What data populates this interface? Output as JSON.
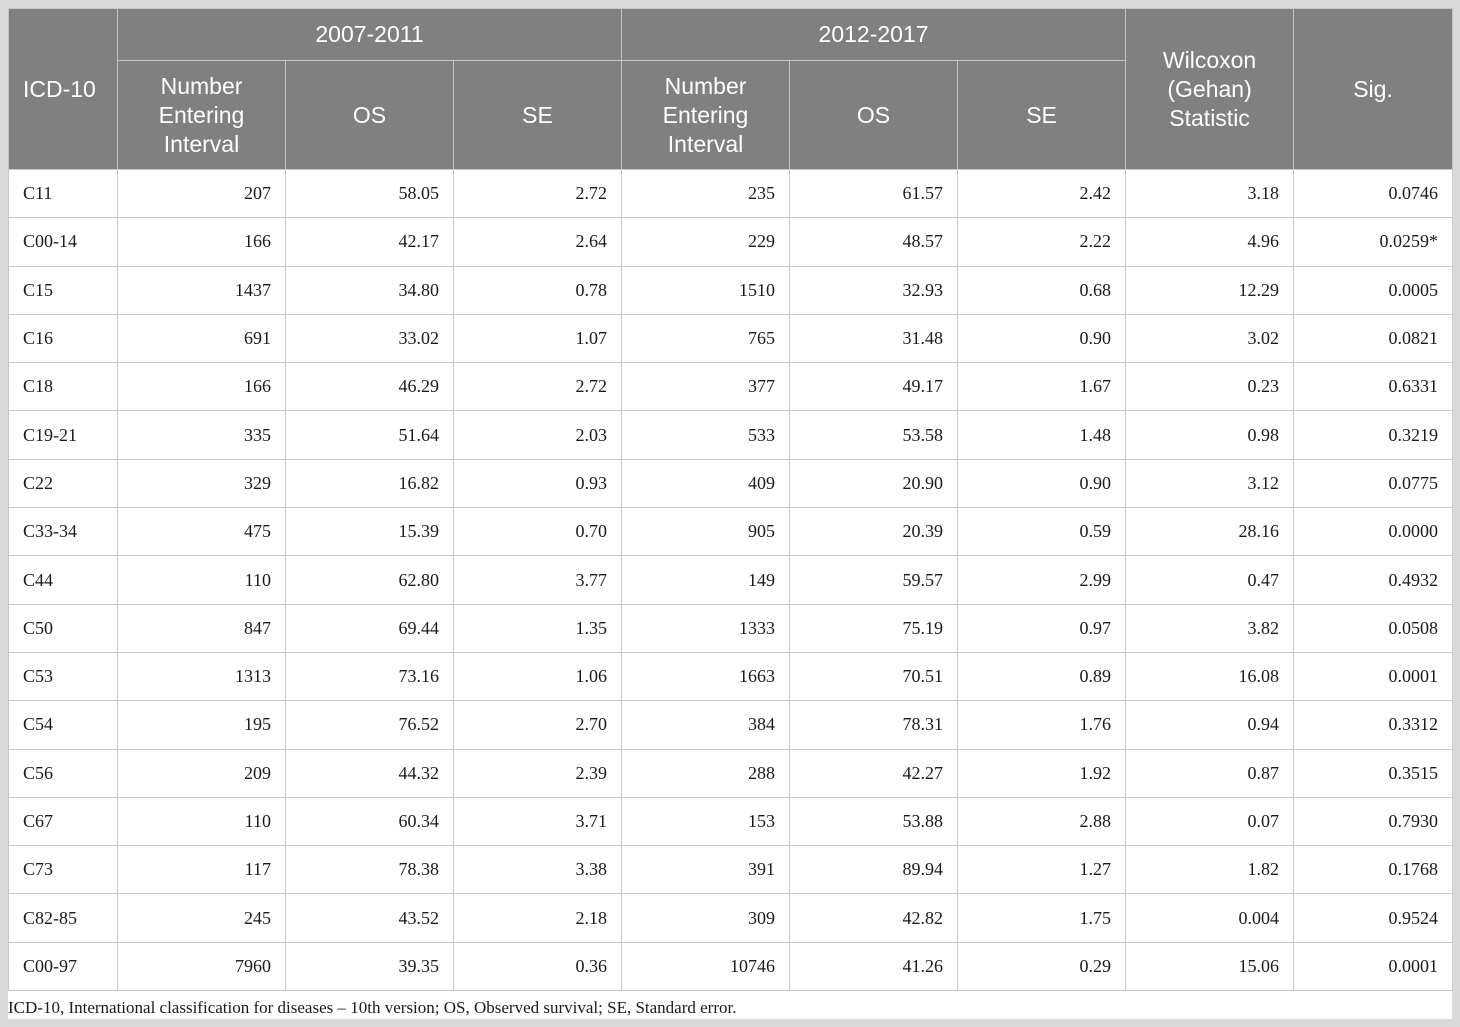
{
  "headers": {
    "icd": "ICD-10",
    "period1": "2007-2011",
    "period2": "2012-2017",
    "wilcoxon": "Wilcoxon (Gehan) Statistic",
    "sig": "Sig.",
    "number": "Number Entering Interval",
    "os": "OS",
    "se": "SE"
  },
  "rows": [
    [
      "C11",
      "207",
      "58.05",
      "2.72",
      "235",
      "61.57",
      "2.42",
      "3.18",
      "0.0746"
    ],
    [
      "C00-14",
      "166",
      "42.17",
      "2.64",
      "229",
      "48.57",
      "2.22",
      "4.96",
      "0.0259*"
    ],
    [
      "C15",
      "1437",
      "34.80",
      "0.78",
      "1510",
      "32.93",
      "0.68",
      "12.29",
      "0.0005"
    ],
    [
      "C16",
      "691",
      "33.02",
      "1.07",
      "765",
      "31.48",
      "0.90",
      "3.02",
      "0.0821"
    ],
    [
      "C18",
      "166",
      "46.29",
      "2.72",
      "377",
      "49.17",
      "1.67",
      "0.23",
      "0.6331"
    ],
    [
      "C19-21",
      "335",
      "51.64",
      "2.03",
      "533",
      "53.58",
      "1.48",
      "0.98",
      "0.3219"
    ],
    [
      "C22",
      "329",
      "16.82",
      "0.93",
      "409",
      "20.90",
      "0.90",
      "3.12",
      "0.0775"
    ],
    [
      "C33-34",
      "475",
      "15.39",
      "0.70",
      "905",
      "20.39",
      "0.59",
      "28.16",
      "0.0000"
    ],
    [
      "C44",
      "110",
      "62.80",
      "3.77",
      "149",
      "59.57",
      "2.99",
      "0.47",
      "0.4932"
    ],
    [
      "C50",
      "847",
      "69.44",
      "1.35",
      "1333",
      "75.19",
      "0.97",
      "3.82",
      "0.0508"
    ],
    [
      "C53",
      "1313",
      "73.16",
      "1.06",
      "1663",
      "70.51",
      "0.89",
      "16.08",
      "0.0001"
    ],
    [
      "C54",
      "195",
      "76.52",
      "2.70",
      "384",
      "78.31",
      "1.76",
      "0.94",
      "0.3312"
    ],
    [
      "C56",
      "209",
      "44.32",
      "2.39",
      "288",
      "42.27",
      "1.92",
      "0.87",
      "0.3515"
    ],
    [
      "C67",
      "110",
      "60.34",
      "3.71",
      "153",
      "53.88",
      "2.88",
      "0.07",
      "0.7930"
    ],
    [
      "C73",
      "117",
      "78.38",
      "3.38",
      "391",
      "89.94",
      "1.27",
      "1.82",
      "0.1768"
    ],
    [
      "C82-85",
      "245",
      "43.52",
      "2.18",
      "309",
      "42.82",
      "1.75",
      "0.004",
      "0.9524"
    ],
    [
      "C00-97",
      "7960",
      "39.35",
      "0.36",
      "10746",
      "41.26",
      "0.29",
      "15.06",
      "0.0001"
    ]
  ],
  "footnote": "ICD-10, International classification for diseases – 10th version; OS, Observed survival; SE, Standard error."
}
